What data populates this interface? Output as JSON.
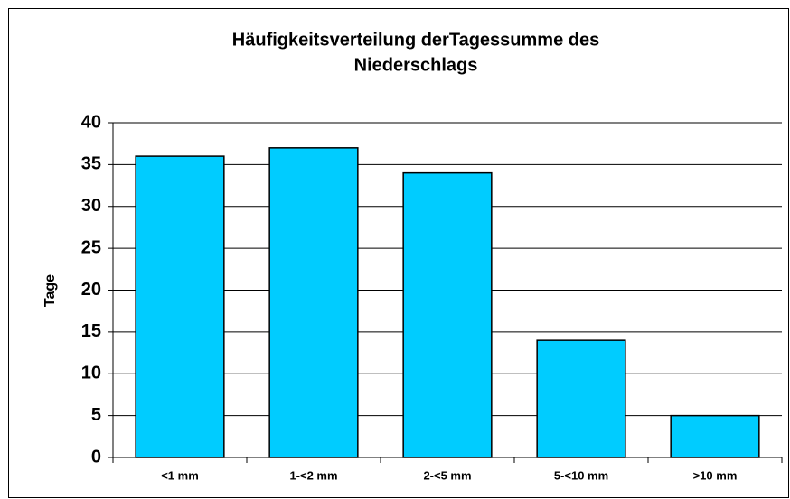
{
  "chart_data": {
    "type": "bar",
    "title": [
      "Häufigkeitsverteilung derTagessumme des",
      "Niederschlags"
    ],
    "y_label": "Tage",
    "categories": [
      "<1 mm",
      "1-<2 mm",
      "2-<5 mm",
      "5-<10 mm",
      ">10 mm"
    ],
    "values": [
      36,
      37,
      34,
      14,
      5
    ],
    "color": "#00ccff",
    "ylim": [
      0,
      40
    ],
    "yticks": [
      0,
      5,
      10,
      15,
      20,
      25,
      30,
      35,
      40
    ],
    "grid": true
  }
}
